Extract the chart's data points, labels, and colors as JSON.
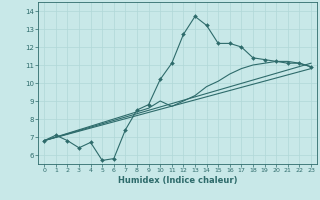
{
  "xlabel": "Humidex (Indice chaleur)",
  "xlim": [
    -0.5,
    23.5
  ],
  "ylim": [
    5.5,
    14.5
  ],
  "xticks": [
    0,
    1,
    2,
    3,
    4,
    5,
    6,
    7,
    8,
    9,
    10,
    11,
    12,
    13,
    14,
    15,
    16,
    17,
    18,
    19,
    20,
    21,
    22,
    23
  ],
  "yticks": [
    6,
    7,
    8,
    9,
    10,
    11,
    12,
    13,
    14
  ],
  "line_color": "#2e6b6b",
  "bg_color": "#c8e8e8",
  "grid_color": "#b0d8d8",
  "line1_x": [
    0,
    1,
    2,
    3,
    4,
    5,
    6,
    7,
    8,
    9,
    10,
    11,
    12,
    13,
    14,
    15,
    16,
    17,
    18,
    19,
    20,
    21,
    22,
    23
  ],
  "line1_y": [
    6.8,
    7.1,
    6.8,
    6.4,
    6.7,
    5.7,
    5.8,
    7.4,
    8.5,
    8.8,
    10.2,
    11.1,
    12.7,
    13.7,
    13.2,
    12.2,
    12.2,
    12.0,
    11.4,
    11.3,
    11.2,
    11.1,
    11.1,
    10.9
  ],
  "line2_x": [
    0,
    23
  ],
  "line2_y": [
    6.8,
    11.1
  ],
  "line3_x": [
    0,
    23
  ],
  "line3_y": [
    6.8,
    10.8
  ],
  "line4_x": [
    0,
    9,
    10,
    11,
    12,
    13,
    14,
    15,
    16,
    17,
    18,
    19,
    20,
    21,
    22,
    23
  ],
  "line4_y": [
    6.8,
    8.6,
    9.0,
    8.7,
    9.0,
    9.3,
    9.8,
    10.1,
    10.5,
    10.8,
    11.0,
    11.1,
    11.2,
    11.2,
    11.1,
    10.9
  ]
}
